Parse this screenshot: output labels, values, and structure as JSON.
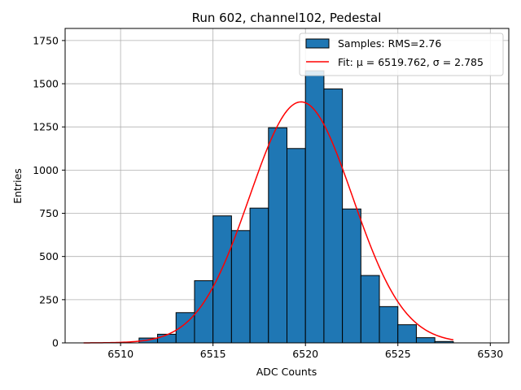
{
  "chart_data": {
    "type": "bar",
    "title": "Run 602, channel102, Pedestal",
    "xlabel": "ADC Counts",
    "ylabel": "Entries",
    "xlim": [
      6507,
      6531
    ],
    "ylim": [
      0,
      1820
    ],
    "x_ticks": [
      6510,
      6515,
      6520,
      6525,
      6530
    ],
    "y_ticks": [
      0,
      250,
      500,
      750,
      1000,
      1250,
      1500,
      1750
    ],
    "grid": true,
    "legend_position": "top-right",
    "bar_color": "#1f77b4",
    "fit_color": "#ff0000",
    "histogram": {
      "name": "Samples: RMS=2.76",
      "bin_width": 1,
      "bins": [
        {
          "x": 6511,
          "count": 28
        },
        {
          "x": 6512,
          "count": 50
        },
        {
          "x": 6513,
          "count": 175
        },
        {
          "x": 6514,
          "count": 360
        },
        {
          "x": 6515,
          "count": 735
        },
        {
          "x": 6516,
          "count": 650
        },
        {
          "x": 6517,
          "count": 780
        },
        {
          "x": 6518,
          "count": 1245
        },
        {
          "x": 6519,
          "count": 1125
        },
        {
          "x": 6520,
          "count": 1575
        },
        {
          "x": 6521,
          "count": 1470
        },
        {
          "x": 6522,
          "count": 775
        },
        {
          "x": 6523,
          "count": 390
        },
        {
          "x": 6524,
          "count": 210
        },
        {
          "x": 6525,
          "count": 105
        },
        {
          "x": 6526,
          "count": 30
        },
        {
          "x": 6527,
          "count": 8
        }
      ]
    },
    "fit": {
      "name": "Fit: μ = 6519.762, σ = 2.785",
      "mu": 6519.762,
      "sigma": 2.785,
      "amplitude": 1395,
      "x_range": [
        6508,
        6528
      ]
    }
  }
}
